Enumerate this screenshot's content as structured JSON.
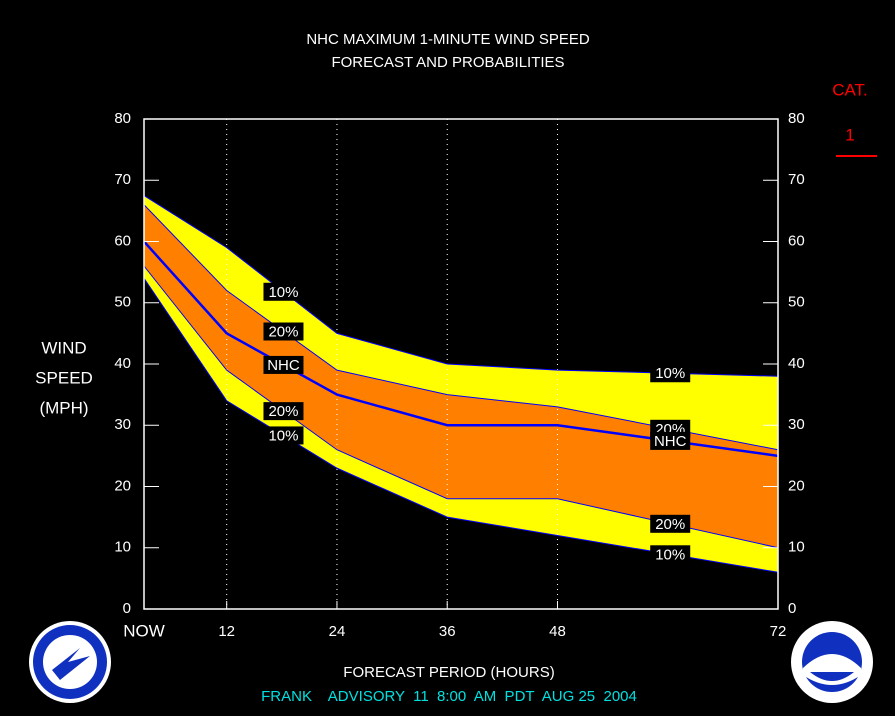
{
  "chart_data": {
    "type": "band-line",
    "title": [
      "NHC MAXIMUM 1-MINUTE WIND SPEED",
      "FORECAST AND PROBABILITIES"
    ],
    "y_label": [
      "WIND",
      "SPEED",
      "(MPH)"
    ],
    "x_label": "FORECAST PERIOD (HOURS)",
    "footer": "FRANK    ADVISORY  11  8:00  AM  PDT  AUG 25  2004",
    "category_label": "CAT.",
    "category_value": "1",
    "x": [
      3,
      12,
      24,
      36,
      48,
      72
    ],
    "series": [
      {
        "name": "10%",
        "color": "#0000ff",
        "values": [
          67.5,
          59,
          45,
          40,
          39,
          38
        ]
      },
      {
        "name": "20%",
        "color": "#0000ff",
        "values": [
          66,
          52,
          39,
          35,
          33,
          26
        ]
      },
      {
        "name": "NHC",
        "color": "#0000ff",
        "values": [
          60,
          45,
          35,
          30,
          30,
          25
        ]
      },
      {
        "name": "20%",
        "color": "#0000ff",
        "values": [
          56,
          39,
          26,
          18,
          18,
          10
        ]
      },
      {
        "name": "10%",
        "color": "#0000ff",
        "values": [
          54,
          34,
          23,
          15,
          12,
          6
        ]
      }
    ],
    "band_colors": {
      "outer": "#ffff00",
      "inner": "#ff8000"
    },
    "xlim": [
      3,
      72
    ],
    "xticks": [
      {
        "value": 3,
        "label": "NOW"
      },
      12,
      24,
      36,
      48,
      72
    ],
    "ylim": [
      0,
      80
    ],
    "yticks": [
      0,
      10,
      20,
      30,
      40,
      50,
      60,
      70,
      80
    ],
    "grid": true
  }
}
